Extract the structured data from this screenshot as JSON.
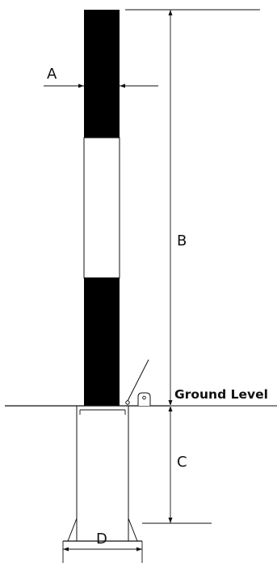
{
  "labels": {
    "a": "A",
    "b": "B",
    "c": "C",
    "d": "D",
    "ground_level": "Ground Level"
  },
  "colors": {
    "line": "#111111",
    "post_dark_band": "#000000",
    "post_light_band": "#ffffff",
    "background": "#ffffff"
  }
}
